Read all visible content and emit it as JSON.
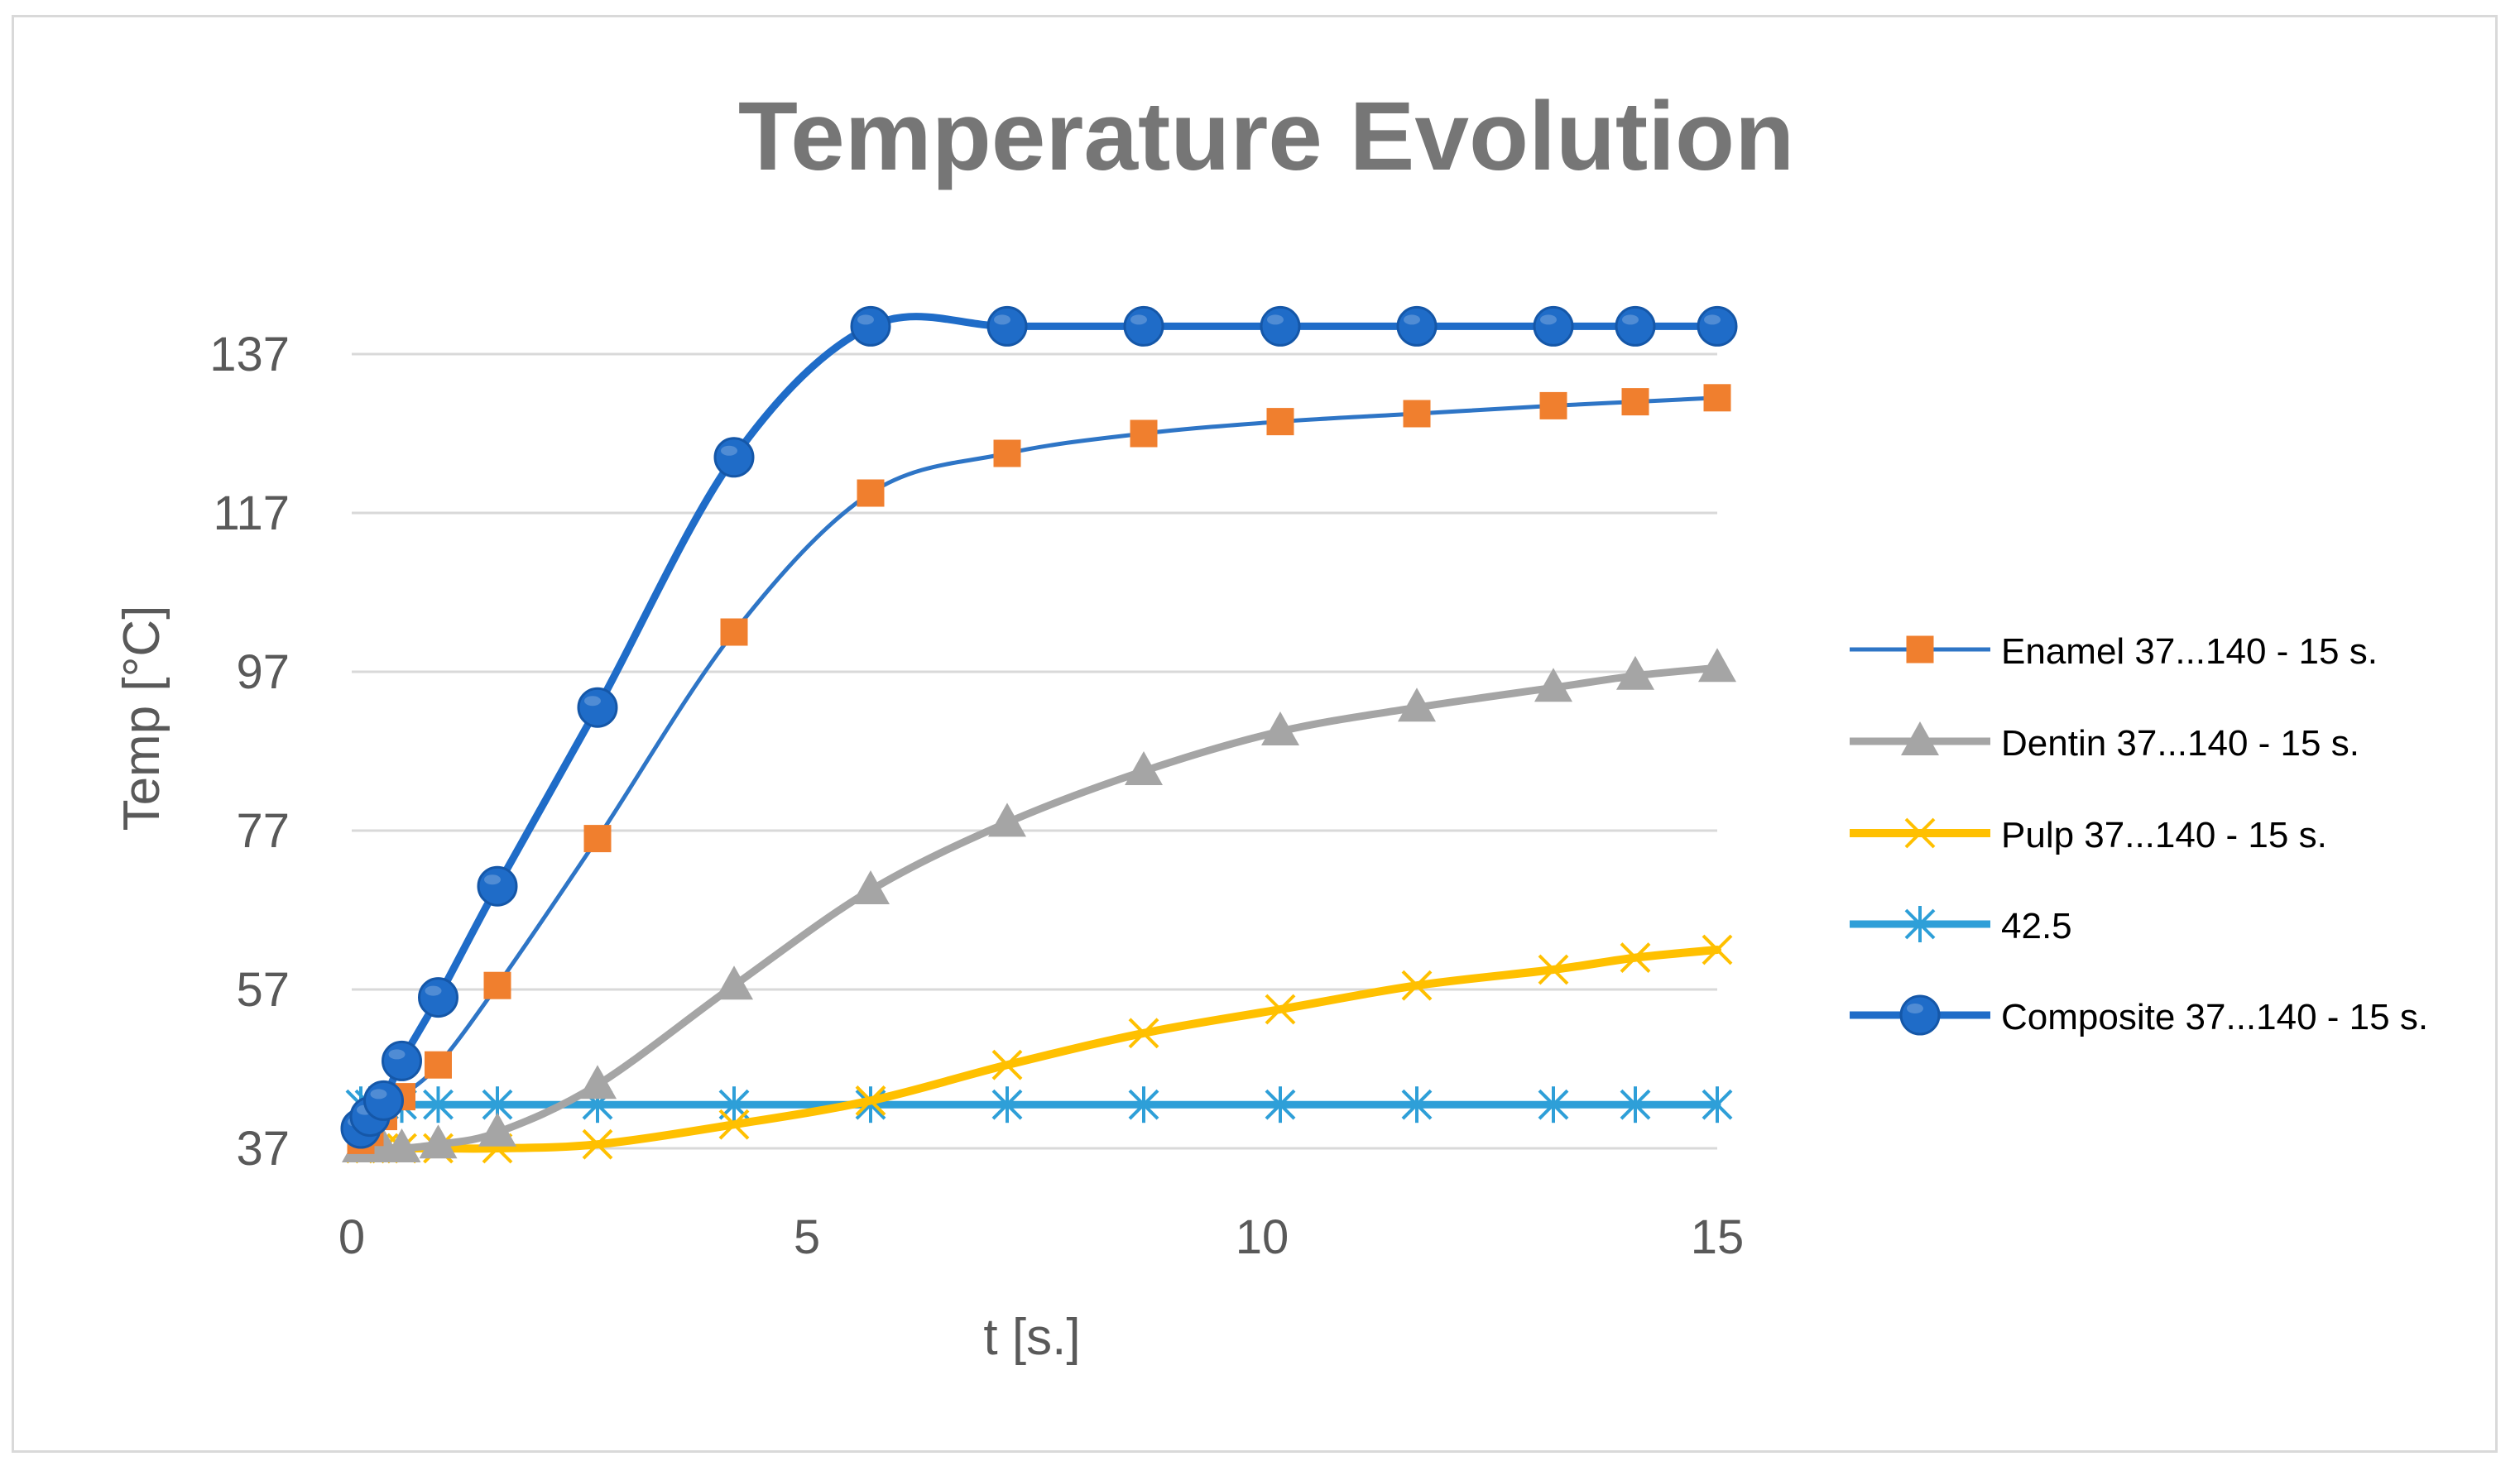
{
  "chart_data": {
    "type": "line",
    "title": "Temperature Evolution",
    "xlabel": "t [s.]",
    "ylabel": "Temp [°C]",
    "xlim": [
      0,
      15
    ],
    "ylim": [
      37,
      137
    ],
    "x_ticks": [
      0,
      5,
      10,
      15
    ],
    "y_ticks": [
      37,
      57,
      77,
      97,
      117,
      137
    ],
    "grid": "horizontal",
    "legend_position": "right",
    "series": [
      {
        "name": "Enamel 37...140 - 15 s.",
        "color": "#2e75c6",
        "marker": "square",
        "marker_color": "#f07f2e",
        "x": [
          0.1,
          0.2,
          0.35,
          0.55,
          0.95,
          1.6,
          2.7,
          4.2,
          5.7,
          7.2,
          8.7,
          10.2,
          11.7,
          13.2,
          14.1,
          15
        ],
        "y": [
          38,
          39,
          41,
          43.5,
          47.5,
          57.5,
          76,
          102,
          119.5,
          124.5,
          127,
          128.5,
          129.5,
          130.5,
          131,
          131.5
        ]
      },
      {
        "name": "Dentin 37...140 - 15 s.",
        "color": "#a5a5a5",
        "marker": "triangle",
        "marker_color": "#a5a5a5",
        "x": [
          0.1,
          0.2,
          0.35,
          0.55,
          0.95,
          1.6,
          2.7,
          4.2,
          5.7,
          7.2,
          8.7,
          10.2,
          11.7,
          13.2,
          14.1,
          15
        ],
        "y": [
          37,
          37,
          37,
          37,
          37.5,
          39,
          45,
          57.5,
          69.5,
          78,
          84.5,
          89.5,
          92.5,
          95,
          96.5,
          97.5
        ]
      },
      {
        "name": "Pulp 37...140 - 15 s.",
        "color": "#ffc000",
        "marker": "x",
        "marker_color": "#ffc000",
        "x": [
          0.1,
          0.2,
          0.35,
          0.55,
          0.95,
          1.6,
          2.7,
          4.2,
          5.7,
          7.2,
          8.7,
          10.2,
          11.7,
          13.2,
          14.1,
          15
        ],
        "y": [
          37,
          37,
          37,
          37,
          37,
          37,
          37.5,
          40,
          43,
          47.5,
          51.5,
          54.5,
          57.5,
          59.5,
          61,
          62
        ]
      },
      {
        "name": "42.5",
        "color": "#2e9fd8",
        "marker": "asterisk",
        "marker_color": "#2e9fd8",
        "x": [
          0.1,
          0.2,
          0.35,
          0.55,
          0.95,
          1.6,
          2.7,
          4.2,
          5.7,
          7.2,
          8.7,
          10.2,
          11.7,
          13.2,
          14.1,
          15
        ],
        "y": [
          42.5,
          42.5,
          42.5,
          42.5,
          42.5,
          42.5,
          42.5,
          42.5,
          42.5,
          42.5,
          42.5,
          42.5,
          42.5,
          42.5,
          42.5,
          42.5
        ]
      },
      {
        "name": "Composite 37...140 - 15 s.",
        "color": "#1f6cc8",
        "marker": "circle",
        "marker_color": "#1f6cc8",
        "x": [
          0.1,
          0.2,
          0.35,
          0.55,
          0.95,
          1.6,
          2.7,
          4.2,
          5.7,
          7.2,
          8.7,
          10.2,
          11.7,
          13.2,
          14.1,
          15
        ],
        "y": [
          39.5,
          41,
          43,
          48,
          56,
          70,
          92.5,
          124,
          140.5,
          140.5,
          140.5,
          140.5,
          140.5,
          140.5,
          140.5,
          140.5
        ]
      }
    ]
  }
}
